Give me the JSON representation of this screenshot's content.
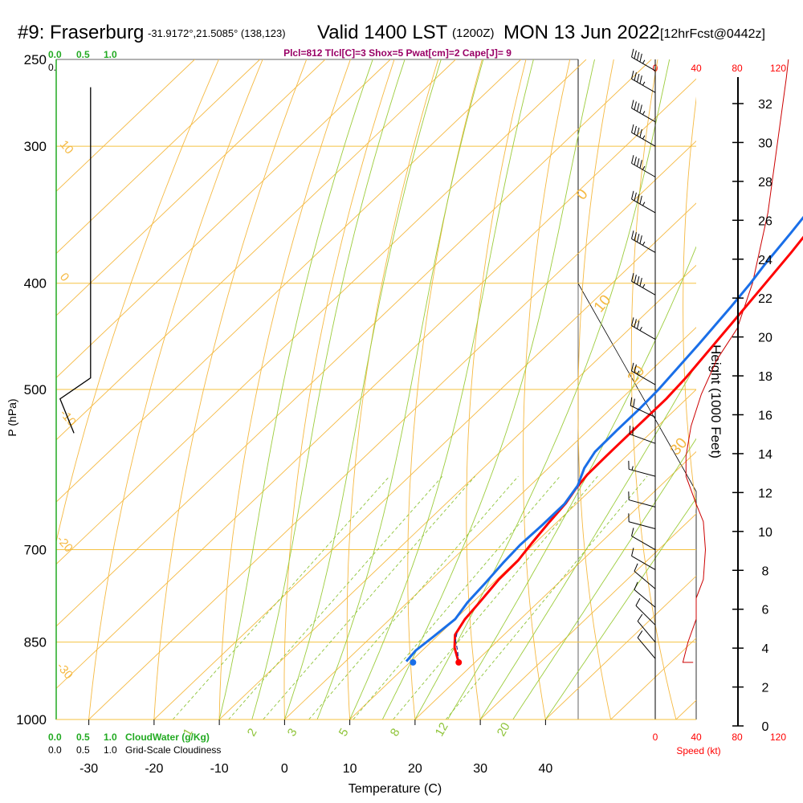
{
  "header": {
    "station": "#9: Fraserburg",
    "coords": "-31.9172°,21.5085° (138,123)",
    "valid": "Valid 1400 LST",
    "zulu": "(1200Z)",
    "date": "MON 13 Jun 2022",
    "forecast": "[12hrFcst@0442z]"
  },
  "indices": "Plcl=812 Tlcl[C]=3 Shox=5 Pwat[cm]=2 Cape[J]= 9",
  "cloud_scale": {
    "water_ticks": [
      "0.0",
      "0.5",
      "1.0"
    ],
    "cover_ticks": [
      "0.0",
      "0.5",
      "1.0"
    ],
    "water_label": "CloudWater (g/Kg)",
    "cover_label": "Grid-Scale Cloudiness"
  },
  "speed_scale": {
    "ticks": [
      "0",
      "40",
      "80",
      "120"
    ],
    "label": "Speed (kt)"
  },
  "height_axis": {
    "label": "Height (1000 Feet)",
    "ticks": [
      "0",
      "2",
      "4",
      "6",
      "8",
      "10",
      "12",
      "14",
      "16",
      "18",
      "20",
      "22",
      "24",
      "26",
      "28",
      "30",
      "32"
    ]
  },
  "chart_data": {
    "type": "line",
    "xlabel": "Temperature (C)",
    "ylabel": "P (hPa)",
    "xlim": [
      -35,
      45
    ],
    "ylim": [
      1000,
      250
    ],
    "x_ticks": [
      -30,
      -20,
      -10,
      0,
      10,
      20,
      30,
      40
    ],
    "y_ticks": [
      250,
      300,
      400,
      500,
      700,
      850,
      1000
    ],
    "mixing_ratio_labels": [
      "1",
      "2",
      "3",
      "5",
      "8",
      "12",
      "20"
    ],
    "dry_adiabat_labels": [
      "10",
      "0",
      "-10",
      "-20",
      "-30"
    ],
    "moist_adiabat_labels": [
      "0",
      "10",
      "20",
      "30"
    ],
    "series": [
      {
        "name": "Temperature",
        "color": "#ff0000",
        "points": [
          [
            17.5,
            887
          ],
          [
            14.5,
            860
          ],
          [
            12.5,
            837
          ],
          [
            11.5,
            810
          ],
          [
            11,
            780
          ],
          [
            10.3,
            745
          ],
          [
            10.2,
            716
          ],
          [
            9.5,
            690
          ],
          [
            8.8,
            660
          ],
          [
            8.3,
            635
          ],
          [
            7.5,
            616
          ],
          [
            7,
            598
          ],
          [
            6.9,
            575
          ],
          [
            6.9,
            545
          ],
          [
            6.9,
            510
          ],
          [
            6.5,
            488
          ],
          [
            4.8,
            435
          ],
          [
            3.5,
            400
          ],
          [
            2.5,
            375
          ],
          [
            1.5,
            355
          ],
          [
            0.8,
            330
          ],
          [
            -0.5,
            310
          ],
          [
            -1.8,
            294
          ],
          [
            -3.8,
            278
          ],
          [
            -5,
            267
          ]
        ]
      },
      {
        "name": "Dewpoint",
        "color": "#1a6fe8",
        "points": [
          [
            9.3,
            885
          ],
          [
            9,
            865
          ],
          [
            9.5,
            840
          ],
          [
            10,
            810
          ],
          [
            9.2,
            782
          ],
          [
            8.8,
            750
          ],
          [
            8.3,
            720
          ],
          [
            8,
            693
          ],
          [
            8.2,
            665
          ],
          [
            8.2,
            636
          ],
          [
            7.3,
            612
          ],
          [
            5.5,
            590
          ],
          [
            4.5,
            570
          ],
          [
            4.4,
            545
          ],
          [
            4.4,
            520
          ],
          [
            4.2,
            500
          ],
          [
            3.1,
            455
          ],
          [
            2,
            420
          ],
          [
            1.2,
            400
          ],
          [
            0.4,
            385
          ],
          [
            -0.7,
            360
          ],
          [
            -2,
            335
          ],
          [
            -3.5,
            310
          ],
          [
            -4.8,
            295
          ],
          [
            -7.8,
            280
          ],
          [
            -9.2,
            268
          ]
        ]
      },
      {
        "name": "Parcel",
        "color": "#2a2a90",
        "points": [
          [
            17.5,
            887
          ],
          [
            15.5,
            866
          ],
          [
            13.5,
            847
          ],
          [
            12.5,
            834
          ]
        ]
      }
    ],
    "surface": {
      "temperature": 17.5,
      "dewpoint": 10.5,
      "pressure": 887
    },
    "cloud_fraction_profile": [
      [
        0,
        1000
      ],
      [
        0,
        250
      ]
    ],
    "cloudiness_profile": [
      [
        0.32,
        548
      ],
      [
        0.07,
        510
      ],
      [
        0.62,
        488
      ],
      [
        0.62,
        265
      ]
    ],
    "wind_speed_profile": [
      [
        37,
        887
      ],
      [
        27,
        887
      ],
      [
        32,
        850
      ],
      [
        40,
        810
      ],
      [
        40,
        775
      ],
      [
        47,
        745
      ],
      [
        49,
        700
      ],
      [
        47,
        660
      ],
      [
        40,
        636
      ],
      [
        30,
        600
      ],
      [
        30,
        575
      ],
      [
        35,
        540
      ],
      [
        45,
        505
      ],
      [
        60,
        470
      ],
      [
        80,
        440
      ],
      [
        95,
        400
      ],
      [
        110,
        345
      ],
      [
        120,
        295
      ],
      [
        128,
        260
      ],
      [
        130,
        250
      ]
    ],
    "wind_barbs": [
      {
        "p": 256,
        "dir": 300,
        "kt": 45
      },
      {
        "p": 268,
        "dir": 300,
        "kt": 45
      },
      {
        "p": 285,
        "dir": 300,
        "kt": 45
      },
      {
        "p": 300,
        "dir": 300,
        "kt": 45
      },
      {
        "p": 320,
        "dir": 300,
        "kt": 45
      },
      {
        "p": 345,
        "dir": 300,
        "kt": 45
      },
      {
        "p": 375,
        "dir": 300,
        "kt": 45
      },
      {
        "p": 410,
        "dir": 300,
        "kt": 45
      },
      {
        "p": 450,
        "dir": 300,
        "kt": 35
      },
      {
        "p": 495,
        "dir": 300,
        "kt": 25
      },
      {
        "p": 530,
        "dir": 295,
        "kt": 20
      },
      {
        "p": 560,
        "dir": 290,
        "kt": 20
      },
      {
        "p": 600,
        "dir": 285,
        "kt": 15
      },
      {
        "p": 640,
        "dir": 285,
        "kt": 10
      },
      {
        "p": 670,
        "dir": 285,
        "kt": 10
      },
      {
        "p": 700,
        "dir": 300,
        "kt": 10
      },
      {
        "p": 730,
        "dir": 300,
        "kt": 10
      },
      {
        "p": 760,
        "dir": 310,
        "kt": 10
      },
      {
        "p": 790,
        "dir": 310,
        "kt": 10
      },
      {
        "p": 820,
        "dir": 315,
        "kt": 10
      },
      {
        "p": 850,
        "dir": 320,
        "kt": 10
      },
      {
        "p": 880,
        "dir": 320,
        "kt": 10
      }
    ]
  }
}
